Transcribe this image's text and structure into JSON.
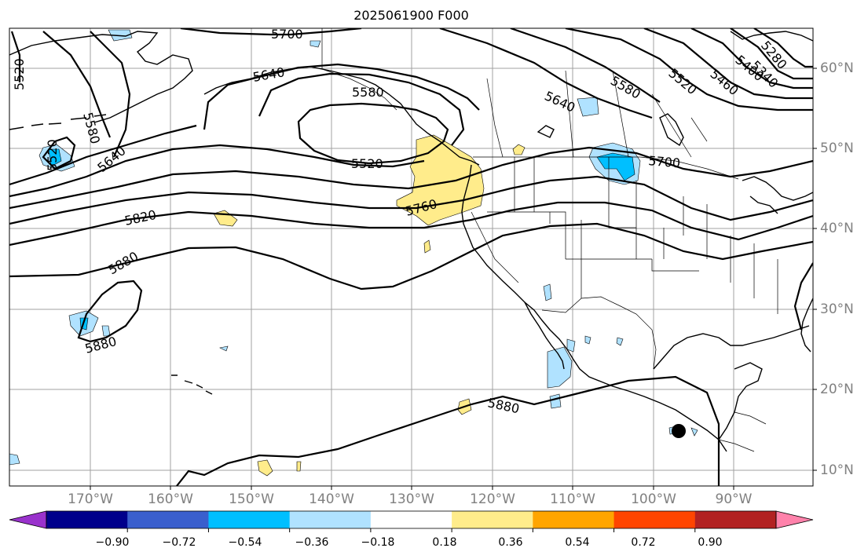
{
  "title": "2025061900 F000",
  "lat_labels": [
    "60°N",
    "50°N",
    "40°N",
    "30°N",
    "20°N",
    "10°N"
  ],
  "lon_labels": [
    "170°W",
    "160°W",
    "150°W",
    "140°W",
    "130°W",
    "120°W",
    "110°W",
    "100°W",
    "90°W"
  ],
  "height_contour_labels": [
    "5700",
    "5520",
    "5640",
    "5580",
    "5520",
    "5640",
    "5580",
    "5520",
    "5820",
    "5880",
    "5880",
    "5880",
    "5760",
    "5700",
    "5640",
    "5580",
    "5520",
    "5460",
    "5400",
    "5340",
    "5280"
  ],
  "colorbar": {
    "colors": [
      "#9932CC",
      "#00008B",
      "#3A5FCD",
      "#00BFFF",
      "#B0E2FF",
      "#FFFFFF",
      "#FFEC8B",
      "#FFA500",
      "#FF4500",
      "#B22222",
      "#FF82AB"
    ],
    "tick_labels": [
      "−0.90",
      "−0.72",
      "−0.54",
      "−0.36",
      "−0.18",
      "0.18",
      "0.36",
      "0.54",
      "0.72",
      "0.90"
    ]
  }
}
